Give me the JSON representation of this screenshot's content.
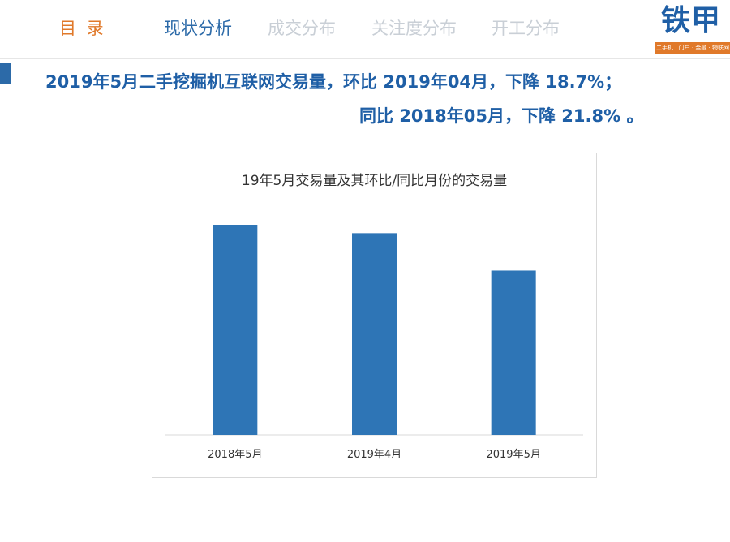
{
  "nav": {
    "items": [
      {
        "label": "目 录"
      },
      {
        "label": "现状分析"
      },
      {
        "label": "成交分布"
      },
      {
        "label": "关注度分布"
      },
      {
        "label": "开工分布"
      }
    ]
  },
  "logo": {
    "name": "铁甲",
    "tagline": "二手机 · 门户 · 金融 · 物联网"
  },
  "headline": {
    "line1": "2019年5月二手挖掘机互联网交易量，环比 2019年04月，下降 18.7%；",
    "line2": "同比 2018年05月，下降 21.8% 。"
  },
  "colors": {
    "accent_blue": "#2c6aa8",
    "headline_blue": "#1f5fa6",
    "nav_orange": "#e0792a",
    "nav_inactive": "#c9cfd6",
    "bar": "#2e75b6"
  },
  "chart_data": {
    "type": "bar",
    "title": "19年5月交易量及其环比/同比月份的交易量",
    "categories": [
      "2018年5月",
      "2019年4月",
      "2019年5月"
    ],
    "values": [
      100,
      96,
      78.2
    ],
    "ylim": [
      0,
      100
    ],
    "xlabel": "",
    "ylabel": "",
    "grid": false,
    "legend": "none",
    "y_axis_visible": false
  }
}
